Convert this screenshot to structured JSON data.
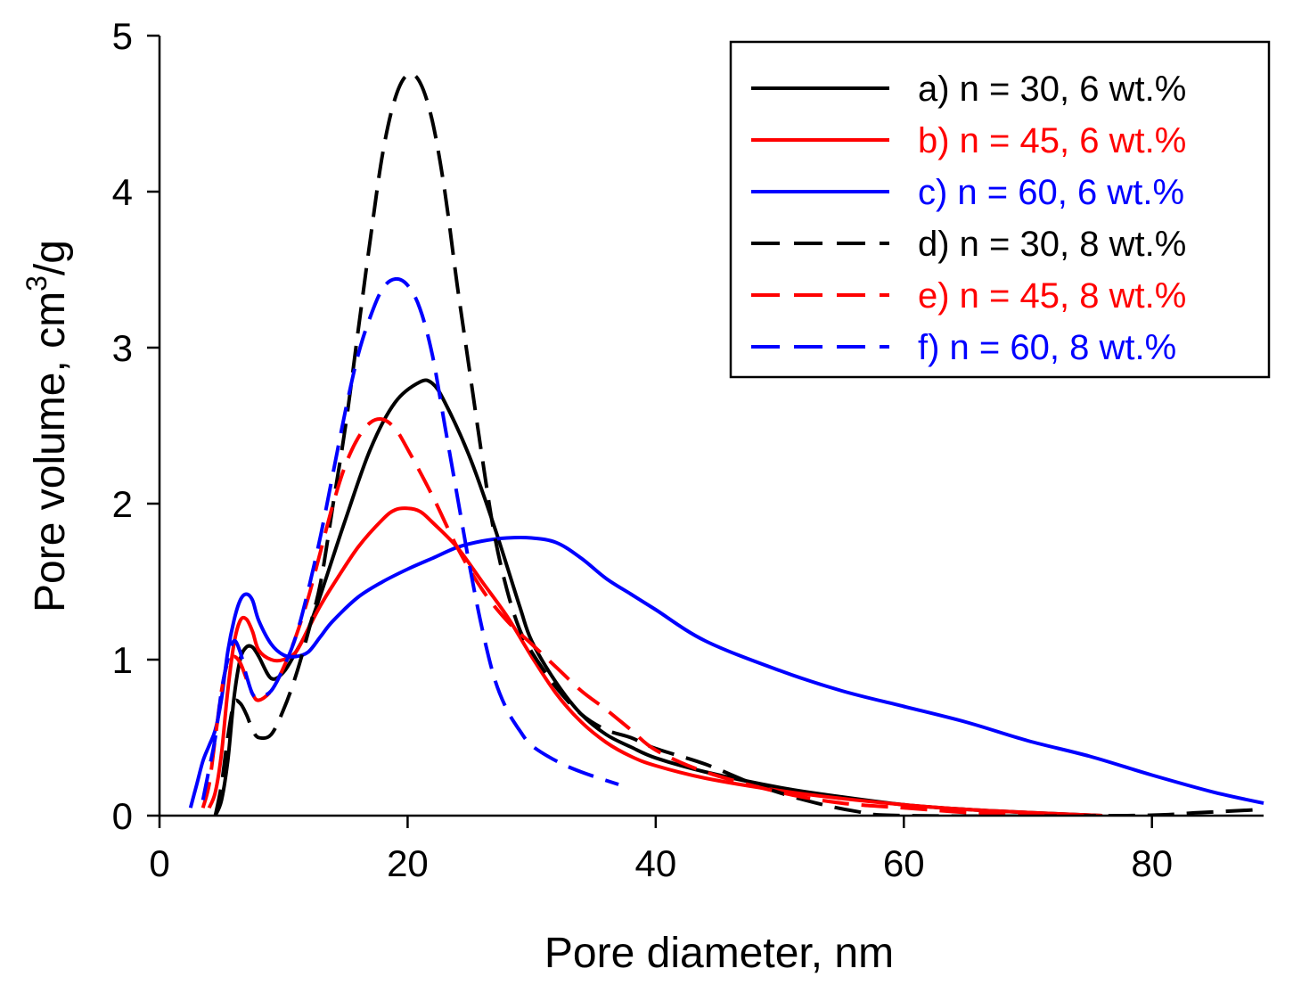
{
  "chart_data": {
    "type": "line",
    "title": "",
    "xlabel": "Pore diameter, nm",
    "ylabel": {
      "main": "Pore volume, cm",
      "sup": "3",
      "tail": "/g"
    },
    "xlim": [
      0,
      89
    ],
    "ylim": [
      0,
      5
    ],
    "xticks": [
      0,
      20,
      40,
      60,
      80
    ],
    "yticks": [
      0,
      1,
      2,
      3,
      4,
      5
    ],
    "xtick_labels": [
      "0",
      "20",
      "40",
      "60",
      "80"
    ],
    "ytick_labels": [
      "0",
      "1",
      "2",
      "3",
      "4",
      "5"
    ],
    "grid": false,
    "legend_position": "top-right",
    "series": [
      {
        "id": "a",
        "name": "a) n = 30, 6 wt.%",
        "color": "#000000",
        "dash": "solid",
        "points": [
          [
            4.5,
            0
          ],
          [
            5,
            0.1
          ],
          [
            5.5,
            0.35
          ],
          [
            6,
            0.75
          ],
          [
            6.5,
            1.0
          ],
          [
            7,
            1.08
          ],
          [
            7.5,
            1.08
          ],
          [
            8,
            1.02
          ],
          [
            9,
            0.88
          ],
          [
            10,
            0.92
          ],
          [
            11,
            1.05
          ],
          [
            12,
            1.2
          ],
          [
            13,
            1.42
          ],
          [
            15,
            1.9
          ],
          [
            17,
            2.35
          ],
          [
            19,
            2.65
          ],
          [
            21,
            2.78
          ],
          [
            22,
            2.77
          ],
          [
            23,
            2.65
          ],
          [
            25,
            2.3
          ],
          [
            27,
            1.85
          ],
          [
            29,
            1.35
          ],
          [
            30,
            1.12
          ],
          [
            32,
            0.85
          ],
          [
            34,
            0.65
          ],
          [
            36,
            0.52
          ],
          [
            38,
            0.44
          ],
          [
            40,
            0.37
          ],
          [
            44,
            0.28
          ],
          [
            50,
            0.18
          ],
          [
            55,
            0.12
          ],
          [
            60,
            0.07
          ],
          [
            65,
            0.04
          ],
          [
            70,
            0.02
          ],
          [
            76,
            0.0
          ]
        ]
      },
      {
        "id": "b",
        "name": "b) n = 45, 6 wt.%",
        "color": "#ff0000",
        "dash": "solid",
        "points": [
          [
            4,
            0.05
          ],
          [
            4.5,
            0.15
          ],
          [
            5,
            0.4
          ],
          [
            5.5,
            0.8
          ],
          [
            6,
            1.1
          ],
          [
            6.5,
            1.25
          ],
          [
            7,
            1.26
          ],
          [
            7.5,
            1.18
          ],
          [
            8,
            1.06
          ],
          [
            9,
            1.0
          ],
          [
            10,
            1.0
          ],
          [
            11,
            1.05
          ],
          [
            12,
            1.2
          ],
          [
            13,
            1.35
          ],
          [
            14,
            1.48
          ],
          [
            16,
            1.72
          ],
          [
            18,
            1.9
          ],
          [
            19,
            1.96
          ],
          [
            20,
            1.97
          ],
          [
            21,
            1.95
          ],
          [
            22,
            1.88
          ],
          [
            24,
            1.72
          ],
          [
            26,
            1.5
          ],
          [
            28,
            1.28
          ],
          [
            30,
            1.02
          ],
          [
            32,
            0.78
          ],
          [
            34,
            0.6
          ],
          [
            36,
            0.47
          ],
          [
            38,
            0.38
          ],
          [
            40,
            0.32
          ],
          [
            44,
            0.24
          ],
          [
            50,
            0.16
          ],
          [
            55,
            0.11
          ],
          [
            60,
            0.07
          ],
          [
            65,
            0.04
          ],
          [
            70,
            0.02
          ],
          [
            76,
            0.0
          ]
        ]
      },
      {
        "id": "c",
        "name": "c) n = 60, 6 wt.%",
        "color": "#0000ff",
        "dash": "solid",
        "points": [
          [
            2.5,
            0.05
          ],
          [
            3,
            0.2
          ],
          [
            3.5,
            0.35
          ],
          [
            4,
            0.45
          ],
          [
            4.5,
            0.55
          ],
          [
            5,
            0.75
          ],
          [
            5.5,
            1.05
          ],
          [
            6,
            1.25
          ],
          [
            6.5,
            1.38
          ],
          [
            7,
            1.42
          ],
          [
            7.5,
            1.38
          ],
          [
            8,
            1.25
          ],
          [
            9,
            1.1
          ],
          [
            10,
            1.03
          ],
          [
            11,
            1.02
          ],
          [
            12,
            1.05
          ],
          [
            13,
            1.15
          ],
          [
            14,
            1.25
          ],
          [
            16,
            1.4
          ],
          [
            18,
            1.5
          ],
          [
            20,
            1.58
          ],
          [
            22,
            1.65
          ],
          [
            24,
            1.72
          ],
          [
            26,
            1.76
          ],
          [
            28,
            1.78
          ],
          [
            30,
            1.78
          ],
          [
            32,
            1.75
          ],
          [
            34,
            1.65
          ],
          [
            36,
            1.52
          ],
          [
            38,
            1.42
          ],
          [
            40,
            1.32
          ],
          [
            44,
            1.12
          ],
          [
            50,
            0.93
          ],
          [
            55,
            0.8
          ],
          [
            60,
            0.7
          ],
          [
            65,
            0.6
          ],
          [
            70,
            0.48
          ],
          [
            75,
            0.38
          ],
          [
            80,
            0.26
          ],
          [
            85,
            0.15
          ],
          [
            89,
            0.08
          ]
        ]
      },
      {
        "id": "d",
        "name": "d) n = 30, 8 wt.%",
        "color": "#000000",
        "dash": "dashed",
        "points": [
          [
            4.5,
            0
          ],
          [
            5,
            0.2
          ],
          [
            5.5,
            0.5
          ],
          [
            6,
            0.72
          ],
          [
            6.5,
            0.72
          ],
          [
            7,
            0.65
          ],
          [
            7.5,
            0.55
          ],
          [
            8,
            0.5
          ],
          [
            9,
            0.52
          ],
          [
            10,
            0.68
          ],
          [
            11,
            0.9
          ],
          [
            12,
            1.18
          ],
          [
            13,
            1.5
          ],
          [
            14,
            2.0
          ],
          [
            15,
            2.5
          ],
          [
            16,
            3.1
          ],
          [
            17,
            3.7
          ],
          [
            18,
            4.25
          ],
          [
            19,
            4.6
          ],
          [
            20,
            4.75
          ],
          [
            21,
            4.7
          ],
          [
            22,
            4.45
          ],
          [
            23,
            4.0
          ],
          [
            24,
            3.4
          ],
          [
            25,
            2.85
          ],
          [
            26,
            2.3
          ],
          [
            27,
            1.8
          ],
          [
            28,
            1.45
          ],
          [
            29,
            1.2
          ],
          [
            30,
            1.05
          ],
          [
            32,
            0.82
          ],
          [
            34,
            0.65
          ],
          [
            36,
            0.55
          ],
          [
            38,
            0.5
          ],
          [
            40,
            0.43
          ],
          [
            44,
            0.33
          ],
          [
            48,
            0.2
          ],
          [
            52,
            0.1
          ],
          [
            56,
            0.03
          ],
          [
            60,
            0.0
          ],
          [
            78,
            0.0
          ],
          [
            84,
            0.02
          ],
          [
            89,
            0.04
          ]
        ]
      },
      {
        "id": "e",
        "name": "e) n = 45, 8 wt.%",
        "color": "#ff0000",
        "dash": "dashed",
        "points": [
          [
            3.5,
            0.05
          ],
          [
            4,
            0.2
          ],
          [
            4.5,
            0.5
          ],
          [
            5,
            0.8
          ],
          [
            5.5,
            0.98
          ],
          [
            6,
            1.02
          ],
          [
            6.5,
            0.98
          ],
          [
            7,
            0.88
          ],
          [
            7.5,
            0.78
          ],
          [
            8,
            0.74
          ],
          [
            9,
            0.8
          ],
          [
            10,
            0.95
          ],
          [
            11,
            1.15
          ],
          [
            12,
            1.4
          ],
          [
            13,
            1.7
          ],
          [
            14,
            2.0
          ],
          [
            15,
            2.25
          ],
          [
            16,
            2.42
          ],
          [
            17,
            2.52
          ],
          [
            18,
            2.54
          ],
          [
            19,
            2.48
          ],
          [
            20,
            2.35
          ],
          [
            22,
            2.05
          ],
          [
            24,
            1.72
          ],
          [
            26,
            1.45
          ],
          [
            28,
            1.25
          ],
          [
            30,
            1.1
          ],
          [
            32,
            0.95
          ],
          [
            34,
            0.8
          ],
          [
            36,
            0.68
          ],
          [
            38,
            0.55
          ],
          [
            40,
            0.42
          ],
          [
            44,
            0.28
          ],
          [
            50,
            0.15
          ],
          [
            55,
            0.08
          ],
          [
            60,
            0.05
          ],
          [
            65,
            0.02
          ],
          [
            70,
            0.0
          ],
          [
            76,
            0.0
          ]
        ]
      },
      {
        "id": "f",
        "name": "f) n =  60, 8 wt.%",
        "color": "#0000ff",
        "dash": "dashed",
        "points": [
          [
            3.5,
            0.1
          ],
          [
            4,
            0.3
          ],
          [
            4.5,
            0.5
          ],
          [
            5,
            0.8
          ],
          [
            5.5,
            1.0
          ],
          [
            6,
            1.12
          ],
          [
            6.5,
            1.05
          ],
          [
            7,
            0.9
          ],
          [
            7.5,
            0.78
          ],
          [
            8,
            0.76
          ],
          [
            9,
            0.8
          ],
          [
            10,
            0.95
          ],
          [
            11,
            1.15
          ],
          [
            12,
            1.45
          ],
          [
            13,
            1.8
          ],
          [
            14,
            2.2
          ],
          [
            15,
            2.6
          ],
          [
            16,
            2.95
          ],
          [
            17,
            3.2
          ],
          [
            18,
            3.38
          ],
          [
            19,
            3.44
          ],
          [
            20,
            3.4
          ],
          [
            21,
            3.25
          ],
          [
            22,
            2.95
          ],
          [
            23,
            2.5
          ],
          [
            24,
            2.05
          ],
          [
            25,
            1.6
          ],
          [
            26,
            1.2
          ],
          [
            27,
            0.88
          ],
          [
            28,
            0.68
          ],
          [
            29,
            0.55
          ],
          [
            30,
            0.45
          ],
          [
            32,
            0.35
          ],
          [
            34,
            0.28
          ],
          [
            37,
            0.2
          ]
        ]
      }
    ]
  }
}
